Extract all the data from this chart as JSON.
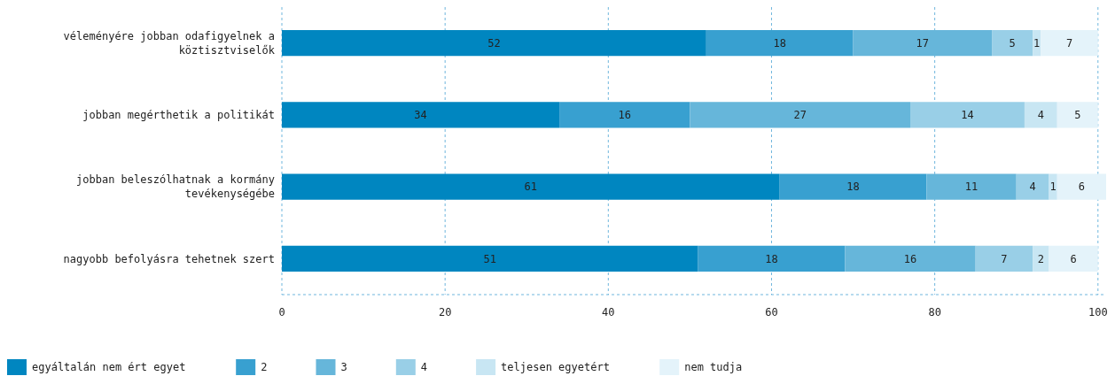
{
  "chart_data": {
    "type": "bar",
    "orientation": "horizontal",
    "stacked": true,
    "data_labels": true,
    "grid": "x",
    "legend": "bottom",
    "categories": [
      "véleményére jobban odafigyelnek a köztisztviselők",
      "jobban megérthetik a politikát",
      "jobban beleszólhatnak a kormány tevékenységébe",
      "nagyobb befolyásra tehetnek szert"
    ],
    "xlim": [
      0,
      101
    ],
    "xticks": [
      0,
      20,
      40,
      60,
      80,
      100
    ],
    "series": [
      {
        "name": "egyáltalán nem ért egyet",
        "color": "#0086c0",
        "values": [
          52,
          34,
          61,
          51
        ]
      },
      {
        "name": "2",
        "color": "#38a0d0",
        "values": [
          18,
          16,
          18,
          18
        ]
      },
      {
        "name": "3",
        "color": "#66b6da",
        "values": [
          17,
          27,
          11,
          16
        ]
      },
      {
        "name": "4",
        "color": "#99cfe7",
        "values": [
          5,
          14,
          4,
          7
        ]
      },
      {
        "name": "teljesen egyetért",
        "color": "#c8e6f3",
        "values": [
          1,
          4,
          1,
          2
        ]
      },
      {
        "name": "nem tudja",
        "color": "#e4f3fa",
        "values": [
          7,
          5,
          6,
          6
        ]
      }
    ]
  }
}
